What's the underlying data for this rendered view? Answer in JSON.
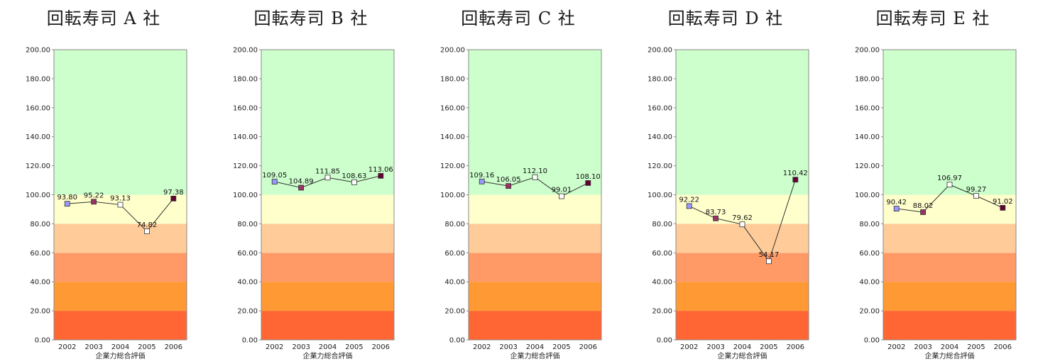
{
  "chart_data": [
    {
      "type": "line",
      "title": "回転寿司 A 社",
      "xlabel": "企業力総合評価",
      "ylabel": "",
      "ylim": [
        0,
        200
      ],
      "yticks": [
        "0.00",
        "20.00",
        "40.00",
        "60.00",
        "80.00",
        "100.00",
        "120.00",
        "140.00",
        "160.00",
        "180.00",
        "200.00"
      ],
      "categories": [
        "2002",
        "2003",
        "2004",
        "2005",
        "2006"
      ],
      "values": [
        93.8,
        95.22,
        93.13,
        74.82,
        97.38
      ],
      "data_labels": [
        "93.80",
        "95.22",
        "93.13",
        "74.82",
        "97.38"
      ]
    },
    {
      "type": "line",
      "title": "回転寿司 B 社",
      "xlabel": "企業力総合評価",
      "ylabel": "",
      "ylim": [
        0,
        200
      ],
      "yticks": [
        "0.00",
        "20.00",
        "40.00",
        "60.00",
        "80.00",
        "100.00",
        "120.00",
        "140.00",
        "160.00",
        "180.00",
        "200.00"
      ],
      "categories": [
        "2002",
        "2003",
        "2004",
        "2005",
        "2006"
      ],
      "values": [
        109.05,
        104.89,
        111.85,
        108.63,
        113.06
      ],
      "data_labels": [
        "109.05",
        "104.89",
        "111.85",
        "108.63",
        "113.06"
      ]
    },
    {
      "type": "line",
      "title": "回転寿司 C 社",
      "xlabel": "企業力総合評価",
      "ylabel": "",
      "ylim": [
        0,
        200
      ],
      "yticks": [
        "0.00",
        "20.00",
        "40.00",
        "60.00",
        "80.00",
        "100.00",
        "120.00",
        "140.00",
        "160.00",
        "180.00",
        "200.00"
      ],
      "categories": [
        "2002",
        "2003",
        "2004",
        "2005",
        "2006"
      ],
      "values": [
        109.16,
        106.05,
        112.1,
        99.01,
        108.1
      ],
      "data_labels": [
        "109.16",
        "106.05",
        "112.10",
        "99.01",
        "108.10"
      ]
    },
    {
      "type": "line",
      "title": "回転寿司 D 社",
      "xlabel": "企業力総合評価",
      "ylabel": "",
      "ylim": [
        0,
        200
      ],
      "yticks": [
        "0.00",
        "20.00",
        "40.00",
        "60.00",
        "80.00",
        "100.00",
        "120.00",
        "140.00",
        "160.00",
        "180.00",
        "200.00"
      ],
      "categories": [
        "2002",
        "2003",
        "2004",
        "2005",
        "2006"
      ],
      "values": [
        92.22,
        83.73,
        79.62,
        54.17,
        110.42
      ],
      "data_labels": [
        "92.22",
        "83.73",
        "79.62",
        "54.17",
        "110.42"
      ]
    },
    {
      "type": "line",
      "title": "回転寿司 E 社",
      "xlabel": "企業力総合評価",
      "ylabel": "",
      "ylim": [
        0,
        200
      ],
      "yticks": [
        "0.00",
        "20.00",
        "40.00",
        "60.00",
        "80.00",
        "100.00",
        "120.00",
        "140.00",
        "160.00",
        "180.00",
        "200.00"
      ],
      "categories": [
        "2002",
        "2003",
        "2004",
        "2005",
        "2006"
      ],
      "values": [
        90.42,
        88.02,
        106.97,
        99.27,
        91.02
      ],
      "data_labels": [
        "90.42",
        "88.02",
        "106.97",
        "99.27",
        "91.02"
      ]
    }
  ],
  "background_bands": [
    {
      "from": 0,
      "to": 20,
      "color": "#ff6633"
    },
    {
      "from": 20,
      "to": 40,
      "color": "#ff9933"
    },
    {
      "from": 40,
      "to": 60,
      "color": "#ff9966"
    },
    {
      "from": 60,
      "to": 80,
      "color": "#ffcc99"
    },
    {
      "from": 80,
      "to": 100,
      "color": "#ffffcc"
    },
    {
      "from": 100,
      "to": 200,
      "color": "#ccffcc"
    }
  ],
  "marker_colors": [
    "#9999ff",
    "#993366",
    "#ffffff",
    "#ffffff",
    "#660033"
  ],
  "line_color": "#333333",
  "frame_color": "#888888"
}
